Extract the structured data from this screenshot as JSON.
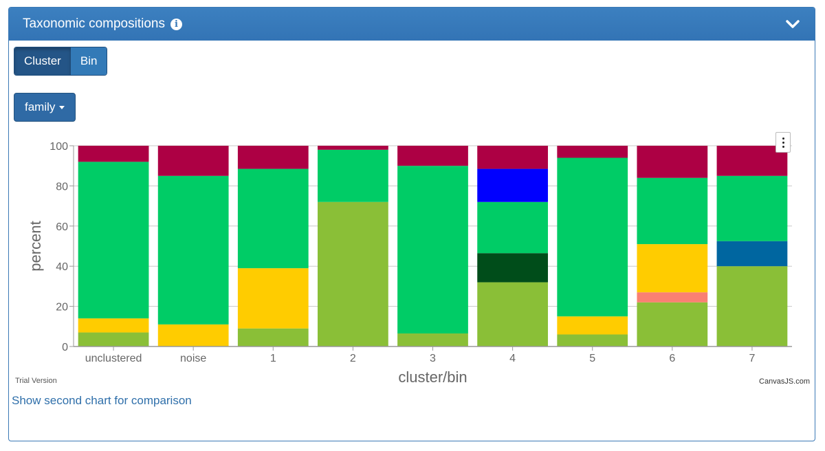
{
  "panel": {
    "title": "Taxonomic compositions",
    "toggle": {
      "options": [
        "Cluster",
        "Bin"
      ],
      "selected": "Cluster"
    },
    "rank_dropdown": "family",
    "menu_icon": "more-vertical-icon",
    "trial_label": "Trial Version",
    "credit_label": "CanvasJS.com",
    "compare_link": "Show second chart for comparison"
  },
  "chart_data": {
    "type": "bar",
    "stacked": "100%",
    "xlabel": "cluster/bin",
    "ylabel": "percent",
    "ylim": [
      0,
      100
    ],
    "yticks": [
      0,
      20,
      40,
      60,
      80,
      100
    ],
    "grid": true,
    "categories": [
      "unclustered",
      "noise",
      "1",
      "2",
      "3",
      "4",
      "5",
      "6",
      "7"
    ],
    "series": [
      {
        "color": "#8abf37",
        "values": [
          7,
          0,
          9,
          72,
          6.5,
          32,
          6,
          22,
          40
        ]
      },
      {
        "color": "#ffcc00",
        "values": [
          7,
          11,
          30,
          0,
          0,
          0,
          9,
          0,
          0
        ]
      },
      {
        "color": "#fa8072",
        "values": [
          0,
          0,
          0,
          0,
          0,
          0,
          0,
          5,
          0
        ]
      },
      {
        "color": "#ffcc00",
        "values": [
          0,
          0,
          0,
          0,
          0,
          0,
          0,
          24,
          0
        ]
      },
      {
        "color": "#004d1a",
        "values": [
          0,
          0,
          0,
          0,
          0,
          14.5,
          0,
          0,
          0
        ]
      },
      {
        "color": "#0066a0",
        "values": [
          0,
          0,
          0,
          0,
          0,
          0,
          0,
          0,
          12.5
        ]
      },
      {
        "color": "#00cc66",
        "values": [
          78,
          74,
          49.5,
          26,
          83.5,
          25.5,
          79,
          33,
          32.5
        ]
      },
      {
        "color": "#0000ff",
        "values": [
          0,
          0,
          0,
          0,
          0,
          16.5,
          0,
          0,
          0
        ]
      },
      {
        "color": "#ad0044",
        "values": [
          8,
          15,
          11.5,
          2,
          10,
          11.5,
          6,
          16,
          15
        ]
      }
    ]
  }
}
